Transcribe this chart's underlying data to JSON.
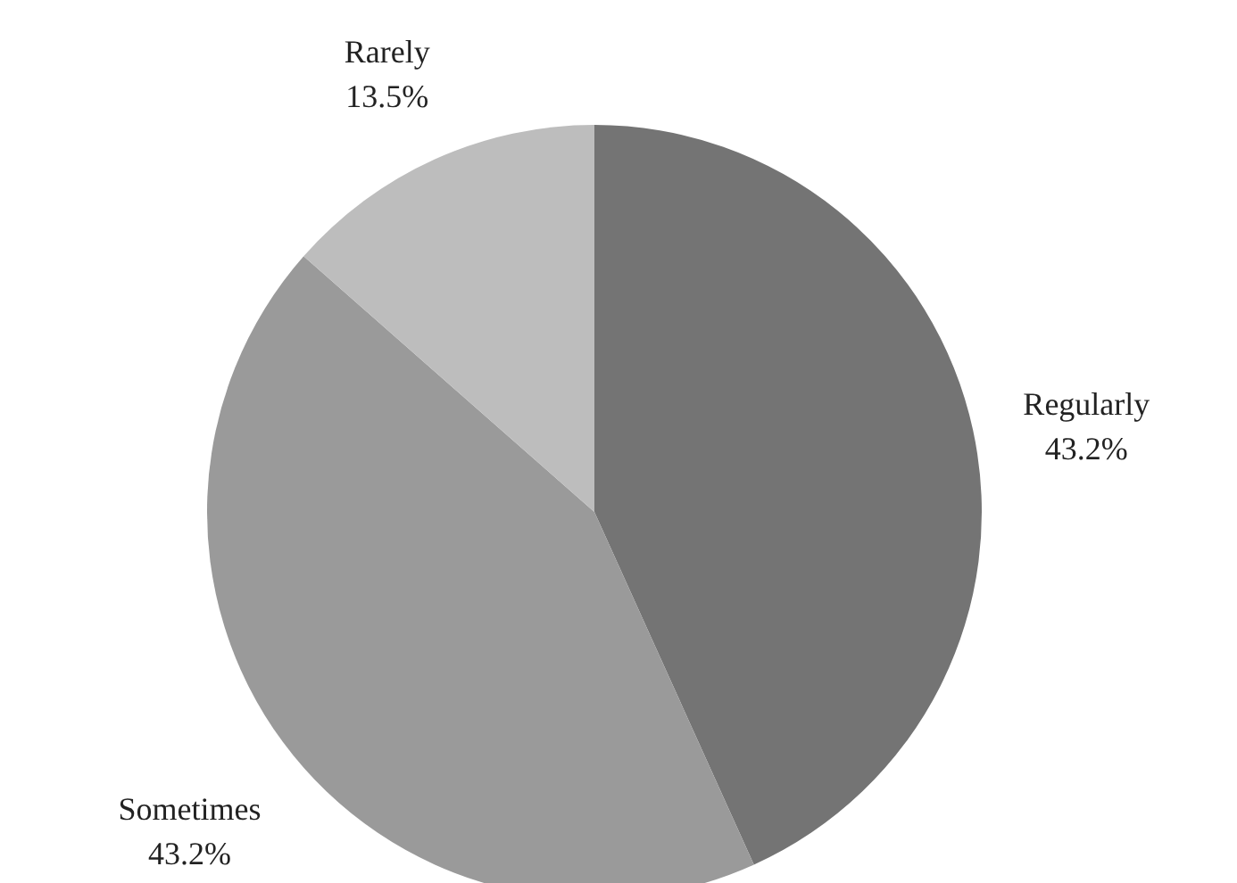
{
  "chart_data": {
    "type": "pie",
    "categories": [
      "Regularly",
      "Sometimes",
      "Rarely"
    ],
    "values": [
      43.2,
      43.2,
      13.5
    ],
    "colors": [
      "#747474",
      "#9a9a9a",
      "#bdbdbd"
    ],
    "value_labels": [
      "43.2%",
      "43.2%",
      "13.5%"
    ]
  }
}
